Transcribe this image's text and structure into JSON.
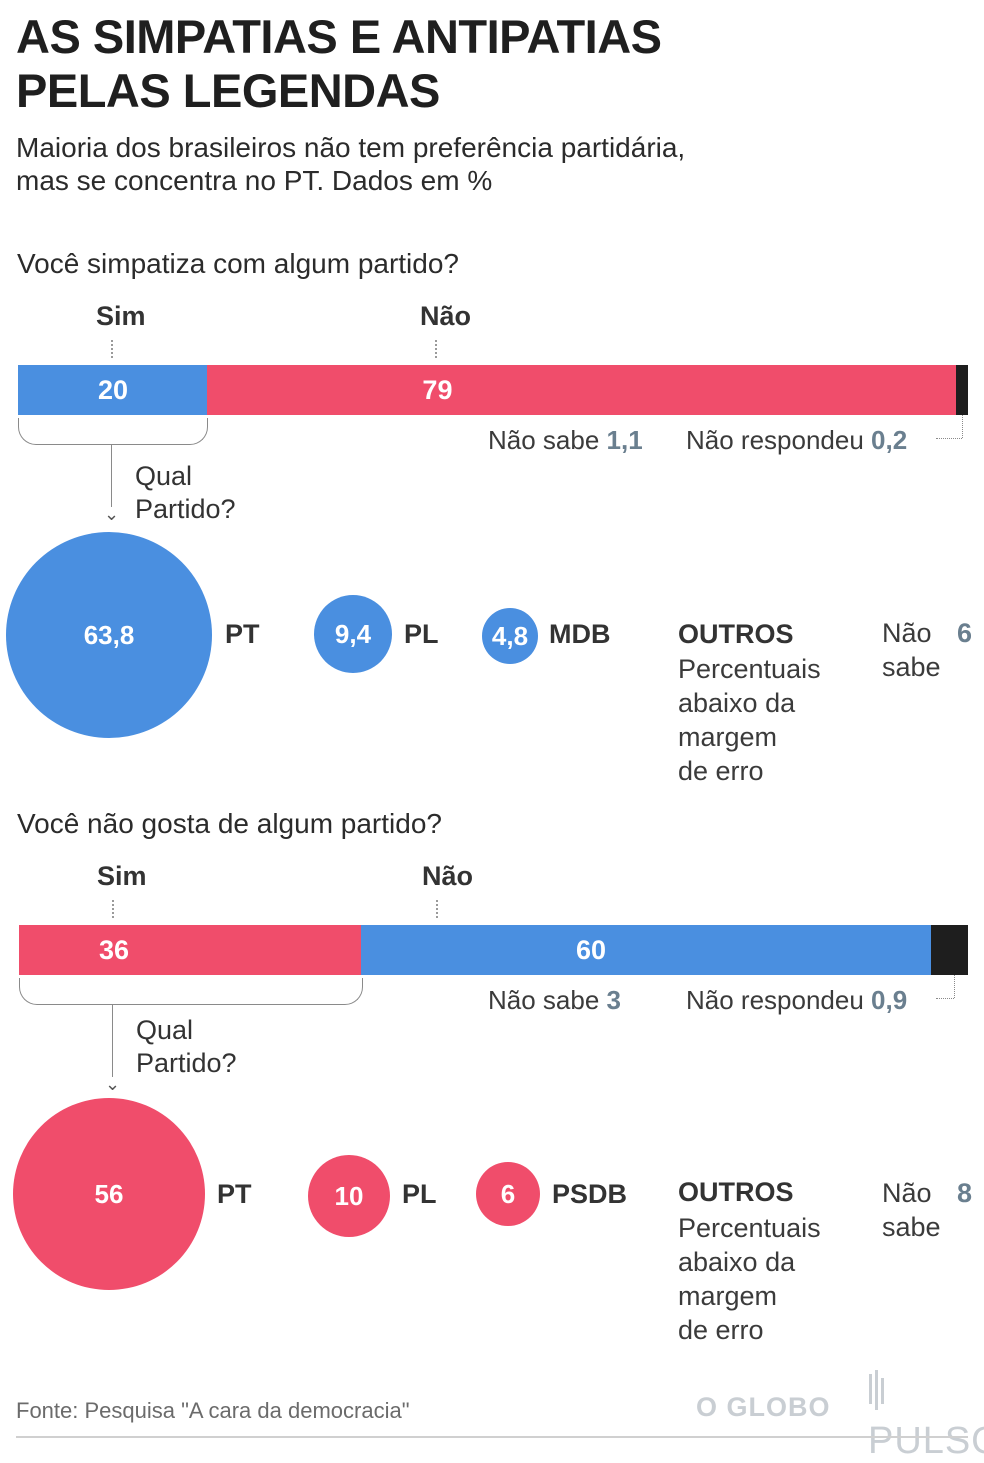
{
  "title": "AS SIMPATIAS E ANTIPATIAS\nPELAS LEGENDAS",
  "subtitle": "Maioria dos brasileiros não tem preferência partidária,\nmas se concentra no PT. Dados em %",
  "colors": {
    "blue": "#4a8fe0",
    "red": "#f04d6b",
    "black": "#1e1e1e",
    "gray_value": "#6a7f8f"
  },
  "chart_data": [
    {
      "type": "bar",
      "title": "Você simpatiza com algum partido?",
      "orientation": "horizontal-stacked",
      "categories": [
        "Sim",
        "Não",
        "Não sabe",
        "Não respondeu"
      ],
      "values": [
        20,
        79,
        1.1,
        0.2
      ],
      "value_labels": [
        "20",
        "79",
        "1,1",
        "0,2"
      ],
      "colors": [
        "#4a8fe0",
        "#f04d6b",
        "#1e1e1e",
        "#1e1e1e"
      ],
      "column_headers": {
        "sim": "Sim",
        "nao": "Não"
      },
      "notes": {
        "nao_sabe_label": "Não sabe",
        "nao_sabe_value": "1,1",
        "nao_resp_label": "Não respondeu",
        "nao_resp_value": "0,2"
      },
      "follow_up": {
        "question": "Qual\nPartido?",
        "parties": [
          {
            "name": "PT",
            "value": 63.8,
            "label": "63,8"
          },
          {
            "name": "PL",
            "value": 9.4,
            "label": "9,4"
          },
          {
            "name": "MDB",
            "value": 4.8,
            "label": "4,8"
          }
        ],
        "outros_title": "OUTROS",
        "outros_text": "Percentuais\nabaixo da\nmargem\nde erro",
        "nao_sabe_label": "Não\nsabe",
        "nao_sabe_value": "6"
      }
    },
    {
      "type": "bar",
      "title": "Você não gosta de algum partido?",
      "orientation": "horizontal-stacked",
      "categories": [
        "Sim",
        "Não",
        "Não sabe",
        "Não respondeu"
      ],
      "values": [
        36,
        60,
        3,
        0.9
      ],
      "value_labels": [
        "36",
        "60",
        "3",
        "0,9"
      ],
      "colors": [
        "#f04d6b",
        "#4a8fe0",
        "#1e1e1e",
        "#1e1e1e"
      ],
      "column_headers": {
        "sim": "Sim",
        "nao": "Não"
      },
      "notes": {
        "nao_sabe_label": "Não sabe",
        "nao_sabe_value": "3",
        "nao_resp_label": "Não respondeu",
        "nao_resp_value": "0,9"
      },
      "follow_up": {
        "question": "Qual\nPartido?",
        "parties": [
          {
            "name": "PT",
            "value": 56,
            "label": "56"
          },
          {
            "name": "PL",
            "value": 10,
            "label": "10"
          },
          {
            "name": "PSDB",
            "value": 6,
            "label": "6"
          }
        ],
        "outros_title": "OUTROS",
        "outros_text": "Percentuais\nabaixo da\nmargem\nde erro",
        "nao_sabe_label": "Não\nsabe",
        "nao_sabe_value": "8"
      }
    }
  ],
  "footer": {
    "source": "Fonte: Pesquisa \"A cara da democracia\"",
    "logo_globo": "O GLOBO",
    "logo_pulso": "PULSO"
  }
}
